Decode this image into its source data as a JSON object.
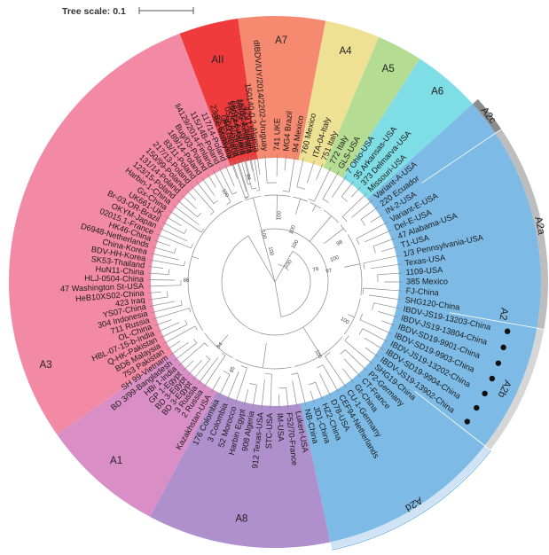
{
  "tree_scale": {
    "label": "Tree scale: 0.1"
  },
  "clades": [
    {
      "id": "AII",
      "label": "AII",
      "color": "#ef3b3b",
      "start": 249,
      "end": 262
    },
    {
      "id": "A7",
      "label": "A7",
      "color": "#f58a70",
      "start": 262,
      "end": 281
    },
    {
      "id": "A4",
      "label": "A4",
      "color": "#efe193",
      "start": 281,
      "end": 293
    },
    {
      "id": "A5",
      "label": "A5",
      "color": "#b4dc92",
      "start": 293,
      "end": 303
    },
    {
      "id": "A6",
      "label": "A6",
      "color": "#7fdde6",
      "start": 303,
      "end": 318
    },
    {
      "id": "A2c",
      "label": "A2c",
      "color": "#7dbbe6",
      "start": 318,
      "end": 326
    },
    {
      "id": "A2a",
      "label": "A2a",
      "color": "#7dbbe6",
      "start": 326,
      "end": 370
    },
    {
      "id": "A2b",
      "label": "A2b",
      "color": "#7dbbe6",
      "start": 370,
      "end": 398
    },
    {
      "id": "A2d",
      "label": "A2d",
      "color": "#7dbbe6",
      "start": 398,
      "end": 438
    },
    {
      "id": "A8",
      "label": "A8",
      "color": "#b08fcd",
      "start": 438,
      "end": 478
    },
    {
      "id": "A1",
      "label": "A1",
      "color": "#d98fc6",
      "start": 478,
      "end": 505
    },
    {
      "id": "A3",
      "label": "A3",
      "color": "#f28aa6",
      "start": 505,
      "end": 609
    }
  ],
  "outer_bands": [
    {
      "label": "A2c",
      "color": "#8c8c8c",
      "start": 318,
      "end": 326
    },
    {
      "label": "A2a",
      "color": "#bdbdbd",
      "start": 326,
      "end": 370
    },
    {
      "label": "A2b",
      "color": "#d6d6d6",
      "start": 370,
      "end": 398
    },
    {
      "label": "A2d",
      "color": "#cfe3f5",
      "start": 398,
      "end": 438
    }
  ],
  "band_labels": [
    {
      "text": "A2c",
      "angle": 322
    },
    {
      "text": "A2a",
      "angle": 348
    },
    {
      "text": "A2",
      "angle": 368
    },
    {
      "text": "A2b",
      "angle": 385
    },
    {
      "text": "A2d",
      "angle": 418
    }
  ],
  "leaves": [
    {
      "name": "23 82-Germany",
      "angle": 250.5
    },
    {
      "name": "OH-Canada",
      "angle": 252.5
    },
    {
      "name": "05/5-Australia",
      "angle": 254.5
    },
    {
      "name": "08/95-Australia",
      "angle": 256.5
    },
    {
      "name": "06/95-Australia",
      "angle": 258.5
    },
    {
      "name": "429 Uruguay",
      "angle": 260.5
    },
    {
      "name": "dIBDV/UY/2014/2202-Uruguay",
      "angle": 265.5
    },
    {
      "name": "741 UKE",
      "angle": 271
    },
    {
      "name": "MG4 Brazil",
      "angle": 275
    },
    {
      "name": "94 Mexico",
      "angle": 279
    },
    {
      "name": "760 Mexico",
      "angle": 283
    },
    {
      "name": "ITA-04-Italy",
      "angle": 288
    },
    {
      "name": "751 Italy",
      "angle": 292
    },
    {
      "name": "772 Italy",
      "angle": 296
    },
    {
      "name": "GLS-USA",
      "angle": 300
    },
    {
      "name": "7 Ohio-USA",
      "angle": 304
    },
    {
      "name": "35 Arkansas-USA",
      "angle": 308
    },
    {
      "name": "373 Delmarva-USA",
      "angle": 312
    },
    {
      "name": "Missouri-USA",
      "angle": 316
    },
    {
      "name": "Variant-A-USA",
      "angle": 320
    },
    {
      "name": "220 Ecuador",
      "angle": 324
    },
    {
      "name": "IN-2-USA",
      "angle": 328
    },
    {
      "name": "Variant-E-USA",
      "angle": 332
    },
    {
      "name": "Del-E-USA",
      "angle": 336
    },
    {
      "name": "47 Alabama-USA",
      "angle": 340
    },
    {
      "name": "T1-USA",
      "angle": 344
    },
    {
      "name": "1/3 Pennsylvania-USA",
      "angle": 348
    },
    {
      "name": "Texas-USA",
      "angle": 352
    },
    {
      "name": "1109-USA",
      "angle": 356
    },
    {
      "name": "385 Mexico",
      "angle": 360
    },
    {
      "name": "FJ-China",
      "angle": 364
    },
    {
      "name": "SHG120-China",
      "angle": 368
    },
    {
      "name": "IBDV-JS19-13203-China",
      "angle": 372,
      "dot": true
    },
    {
      "name": "IBDV-JS19-13804-China",
      "angle": 376,
      "dot": true
    },
    {
      "name": "IBDV-SD19-9901-China",
      "angle": 380,
      "dot": true
    },
    {
      "name": "IBDV-SD19-9903-China",
      "angle": 384,
      "dot": true
    },
    {
      "name": "IBDV-JS19-13202-China",
      "angle": 388,
      "dot": true
    },
    {
      "name": "IBDV-SD19-9904-China",
      "angle": 392,
      "dot": true
    },
    {
      "name": "IBDV-JS19-13902-China",
      "angle": 396,
      "dot": true
    },
    {
      "name": "SHG19-China",
      "angle": 400
    },
    {
      "name": "P2-Germany",
      "angle": 404
    },
    {
      "name": "CT-France",
      "angle": 408
    },
    {
      "name": "Gt-China",
      "angle": 412
    },
    {
      "name": "CU-1-Germany",
      "angle": 416
    },
    {
      "name": "CEF94-Netherlands",
      "angle": 420
    },
    {
      "name": "D78-USA",
      "angle": 424
    },
    {
      "name": "HZ2-China",
      "angle": 428
    },
    {
      "name": "JD1-China",
      "angle": 432
    },
    {
      "name": "NB-China",
      "angle": 436
    },
    {
      "name": "Lukert-USA",
      "angle": 440
    },
    {
      "name": "F52/70-France",
      "angle": 444
    },
    {
      "name": "IM-USA",
      "angle": 448
    },
    {
      "name": "STC-USA",
      "angle": 452
    },
    {
      "name": "912 Texas-USA",
      "angle": 456
    },
    {
      "name": "908 Algeria",
      "angle": 460
    },
    {
      "name": "Harbin Egypt",
      "angle": 464
    },
    {
      "name": "52 Morocco",
      "angle": 468
    },
    {
      "name": "3 Colombia",
      "angle": 472
    },
    {
      "name": "176 Colombia",
      "angle": 476
    },
    {
      "name": "Kazakhstan-USA",
      "angle": 480
    },
    {
      "name": "2 Russia",
      "angle": 484
    },
    {
      "name": "3 Russia",
      "angle": 487
    },
    {
      "name": "BD 3-Egypt",
      "angle": 490
    },
    {
      "name": "BD 3-Egypt",
      "angle": 493
    },
    {
      "name": "GP 1-Egypt",
      "angle": 496
    },
    {
      "name": "HBi 1-India",
      "angle": 499
    },
    {
      "name": "BD 3/99-Bangladesh",
      "angle": 502
    },
    {
      "name": "SH 99-Vietnam",
      "angle": 505
    },
    {
      "name": "753 Pakistan",
      "angle": 508
    },
    {
      "name": "BD6 Malaysia",
      "angle": 511
    },
    {
      "name": "Q-HK-Pakistan",
      "angle": 514
    },
    {
      "name": "HBL-07-15-b-India",
      "angle": 517
    },
    {
      "name": "OL-China",
      "angle": 520
    },
    {
      "name": "711 Russia",
      "angle": 523
    },
    {
      "name": "304 Indonesia",
      "angle": 526
    },
    {
      "name": "YS07-China",
      "angle": 529
    },
    {
      "name": "423 Iraq",
      "angle": 532
    },
    {
      "name": "HeB10XS02-China",
      "angle": 535
    },
    {
      "name": "47 Washington St-USA",
      "angle": 538
    },
    {
      "name": "HLJ-0504-China",
      "angle": 541
    },
    {
      "name": "HuN11-China",
      "angle": 544
    },
    {
      "name": "SK53-Thailand",
      "angle": 547
    },
    {
      "name": "BDV-HH-Korea",
      "angle": 550
    },
    {
      "name": "China-Korea",
      "angle": 553
    },
    {
      "name": "D6948-Netherlands",
      "angle": 556
    },
    {
      "name": "HK46-China",
      "angle": 559
    },
    {
      "name": "02015.1-France",
      "angle": 562
    },
    {
      "name": "OKYM-Japan",
      "angle": 565
    },
    {
      "name": "Br-03-OR-Brazil",
      "angle": 568
    },
    {
      "name": "UK661-UK",
      "angle": 571
    },
    {
      "name": "Gx-China",
      "angle": 574
    },
    {
      "name": "Harbin-1-China",
      "angle": 577
    },
    {
      "name": "123/15-Poland",
      "angle": 580
    },
    {
      "name": "131/14-Poland",
      "angle": 583
    },
    {
      "name": "150/99-Poland",
      "angle": 586
    },
    {
      "name": "217/13-Poland",
      "angle": 589
    },
    {
      "name": "83/11-Poland",
      "angle": 592
    },
    {
      "name": "189/14-Poland",
      "angle": 595
    },
    {
      "name": "Bug/03-Poland",
      "angle": 598
    },
    {
      "name": "li4129/2014-Finland",
      "angle": 601
    },
    {
      "name": "115/14B-Poland",
      "angle": 604
    },
    {
      "name": "117/14-Poland",
      "angle": 607
    },
    {
      "name": "866 Malaysia",
      "angle": 610
    },
    {
      "name": "399 Algeria",
      "angle": 613
    },
    {
      "name": "150144-Algeria",
      "angle": 616
    },
    {
      "name": "150124-Algeria",
      "angle": 619
    },
    {
      "name": "150140-0.2-Algeria",
      "angle": 622
    }
  ],
  "bootstrap": [
    {
      "text": "100",
      "angle": 275,
      "r": 75
    },
    {
      "text": "100",
      "angle": 290,
      "r": 62
    },
    {
      "text": "100",
      "angle": 300,
      "r": 48
    },
    {
      "text": "100",
      "angle": 255,
      "r": 55
    },
    {
      "text": "98",
      "angle": 330,
      "r": 85
    },
    {
      "text": "100",
      "angle": 340,
      "r": 72
    },
    {
      "text": "97",
      "angle": 350,
      "r": 62
    },
    {
      "text": "79",
      "angle": 345,
      "r": 48
    },
    {
      "text": "100",
      "angle": 390,
      "r": 90
    },
    {
      "text": "100",
      "angle": 420,
      "r": 95
    },
    {
      "text": "100",
      "angle": 260,
      "r": 35
    },
    {
      "text": "100",
      "angle": 310,
      "r": 25
    },
    {
      "text": "64",
      "angle": 490,
      "r": 95
    },
    {
      "text": "85",
      "angle": 475,
      "r": 110
    },
    {
      "text": "100",
      "angle": 600,
      "r": 115
    },
    {
      "text": "94",
      "angle": 615,
      "r": 122
    },
    {
      "text": "86",
      "angle": 540,
      "r": 100
    }
  ]
}
